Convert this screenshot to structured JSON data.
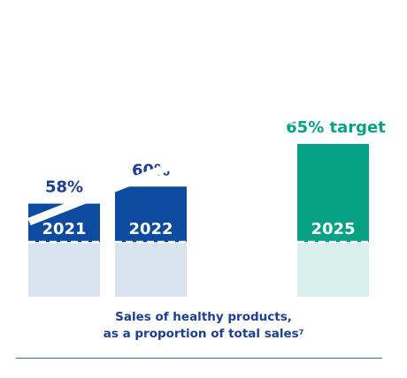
{
  "chart_data": {
    "type": "bar",
    "categories": [
      "2021",
      "2022",
      "2025"
    ],
    "values": [
      58,
      60,
      65
    ],
    "data_labels": [
      "58%",
      "60%",
      "65% target"
    ],
    "ylim": [
      0,
      100
    ],
    "series_colors": [
      "#0d4ba0",
      "#0d4ba0",
      "#07a186"
    ],
    "baseline_colors": [
      "#d9e2ef",
      "#d9e2ef",
      "#d9efeb"
    ],
    "trend_arrow": true,
    "grid": false
  },
  "caption": {
    "line1": "Sales of healthy products,",
    "line2": "as a proportion of total sales",
    "footnote": "7"
  },
  "colors": {
    "actual": "#0d4ba0",
    "target": "#07a186",
    "text_actual": "#1c3f94",
    "text_target": "#07a186",
    "rule": "#2d6fd0"
  }
}
